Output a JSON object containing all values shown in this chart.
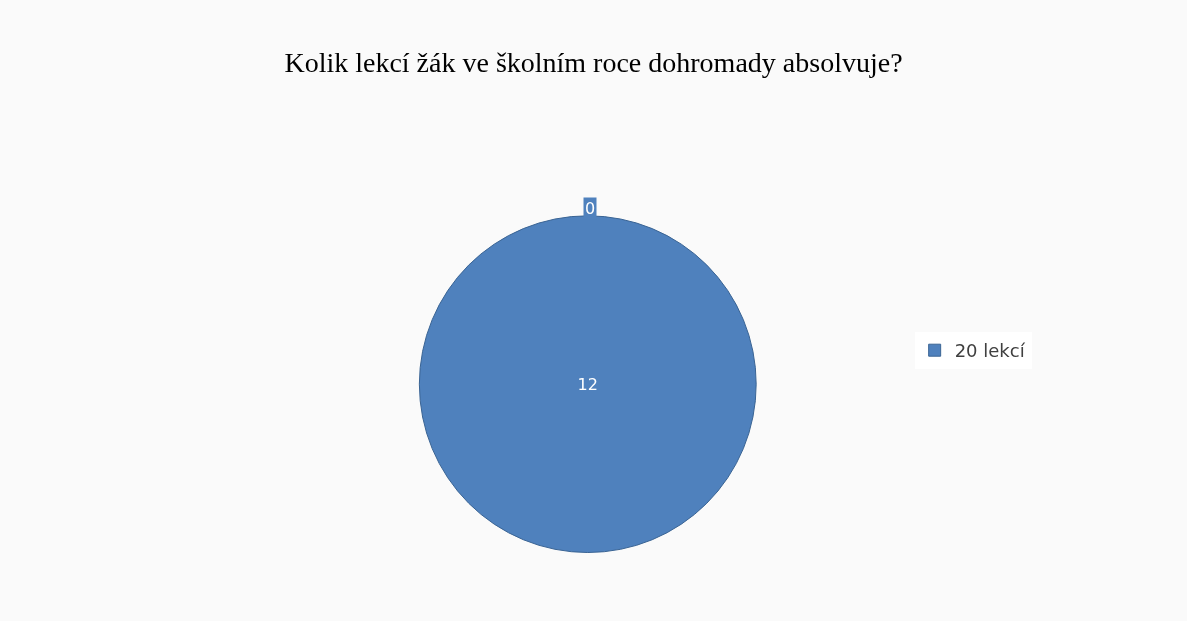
{
  "chart_data": {
    "type": "pie",
    "title": "Kolik lekcí žák ve školním roce dohromady absolvuje?",
    "categories": [
      "20 lekcí"
    ],
    "values": [
      12
    ],
    "colors": [
      "#4f81bd"
    ],
    "data_labels": true,
    "legend": "right",
    "annotations": [
      "0"
    ]
  }
}
